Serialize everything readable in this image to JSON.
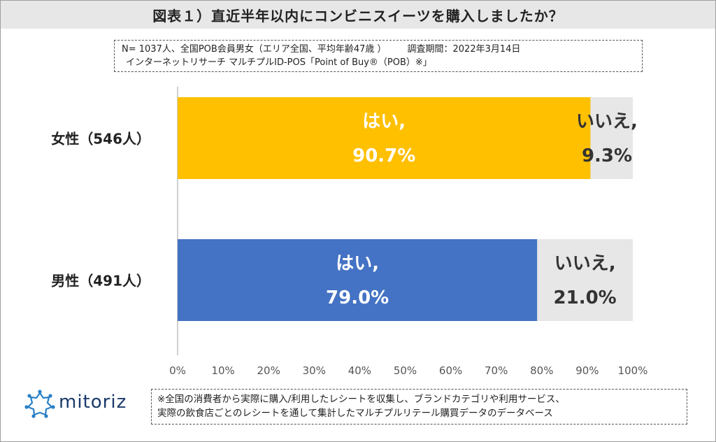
{
  "title": "図表１）直近半年以内にコンビニスイーツを購入しましたか？",
  "note": {
    "line1": "N= 1037人、全国POB会員男女（エリア全国、平均年齢47歳 ）",
    "survey_date": "調査期間：2022年3月14日",
    "line2": "インターネットリサーチ マルチプルID-POS「Point of Buy®（POB）※」"
  },
  "footer_note": {
    "line1": "※全国の消費者から実際に購入/利用したレシートを収集し、ブランドカテゴリや利用サービス、",
    "line2": "実際の飲食店ごとのレシートを通して集計したマルチプルリテール購買データのデータベース"
  },
  "logo": {
    "text": "mitoriz",
    "icon": "mitoriz-star-logo-icon"
  },
  "colors": {
    "female_yes": "#FFC000",
    "male_yes": "#4472C4",
    "no": "#E7E7E7",
    "yes_text": "#FFFFFF",
    "no_text": "#333333"
  },
  "chart_data": {
    "type": "bar",
    "orientation": "horizontal",
    "stacked": true,
    "percent": true,
    "categories": [
      "女性（546人）",
      "男性（491人）"
    ],
    "series": [
      {
        "name": "はい",
        "values": [
          90.7,
          79.0
        ]
      },
      {
        "name": "いいえ",
        "values": [
          9.3,
          21.0
        ]
      }
    ],
    "bar_labels": [
      {
        "yes_label": "はい,",
        "yes_value": "90.7%",
        "no_label": "いいえ,",
        "no_value": "9.3%"
      },
      {
        "yes_label": "はい,",
        "yes_value": "79.0%",
        "no_label": "いいえ,",
        "no_value": "21.0%"
      }
    ],
    "xlim": [
      0,
      100
    ],
    "x_ticks": [
      "0%",
      "10%",
      "20%",
      "30%",
      "40%",
      "50%",
      "60%",
      "70%",
      "80%",
      "90%",
      "100%"
    ],
    "legend": "none",
    "grid": false
  }
}
